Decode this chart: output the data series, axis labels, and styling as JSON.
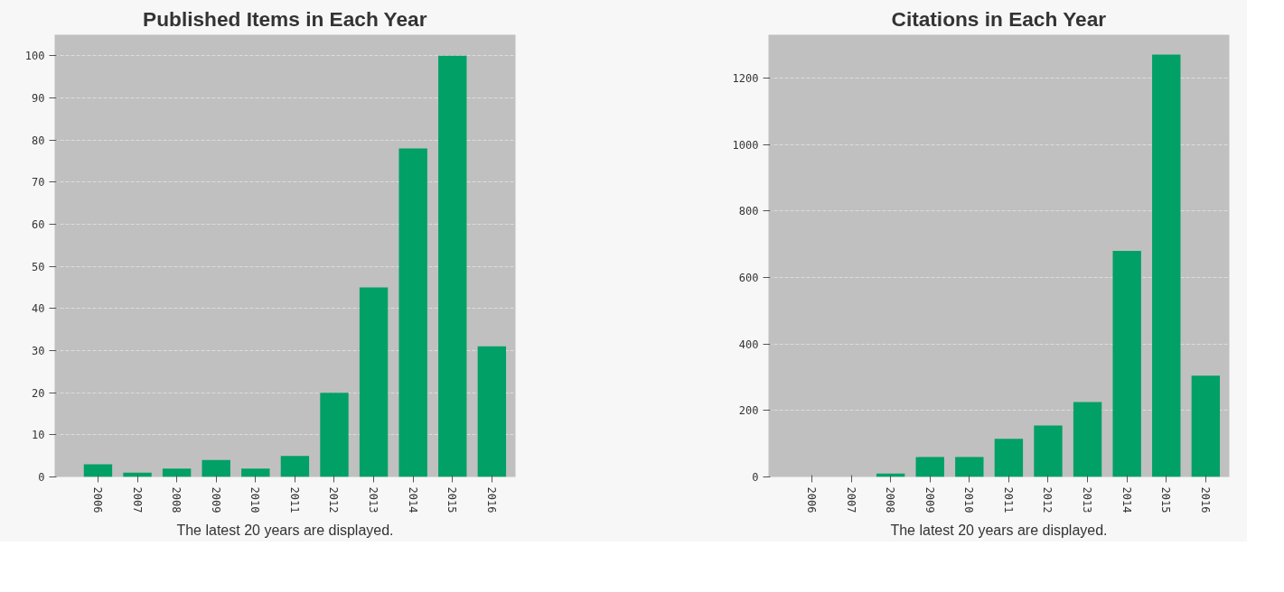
{
  "chart_data": [
    {
      "type": "bar",
      "title": "Published Items in Each Year",
      "categories": [
        "2006",
        "2007",
        "2008",
        "2009",
        "2010",
        "2011",
        "2012",
        "2013",
        "2014",
        "2015",
        "2016"
      ],
      "values": [
        3,
        1,
        2,
        4,
        2,
        5,
        20,
        45,
        78,
        100,
        31
      ],
      "color": "#00a066",
      "ylim": [
        0,
        105
      ],
      "yticks": [
        0,
        10,
        20,
        30,
        40,
        50,
        60,
        70,
        80,
        90,
        100
      ],
      "grid": "y",
      "annotations": [
        "The latest 20 years are displayed."
      ]
    },
    {
      "type": "bar",
      "title": "Citations in Each Year",
      "categories": [
        "2006",
        "2007",
        "2008",
        "2009",
        "2010",
        "2011",
        "2012",
        "2013",
        "2014",
        "2015",
        "2016"
      ],
      "values": [
        0,
        0,
        10,
        60,
        60,
        115,
        155,
        225,
        680,
        1270,
        305
      ],
      "color": "#00a066",
      "ylim": [
        0,
        1330
      ],
      "yticks": [
        0,
        200,
        400,
        600,
        800,
        1000,
        1200
      ],
      "grid": "y",
      "annotations": [
        "The latest 20 years are displayed."
      ]
    }
  ]
}
